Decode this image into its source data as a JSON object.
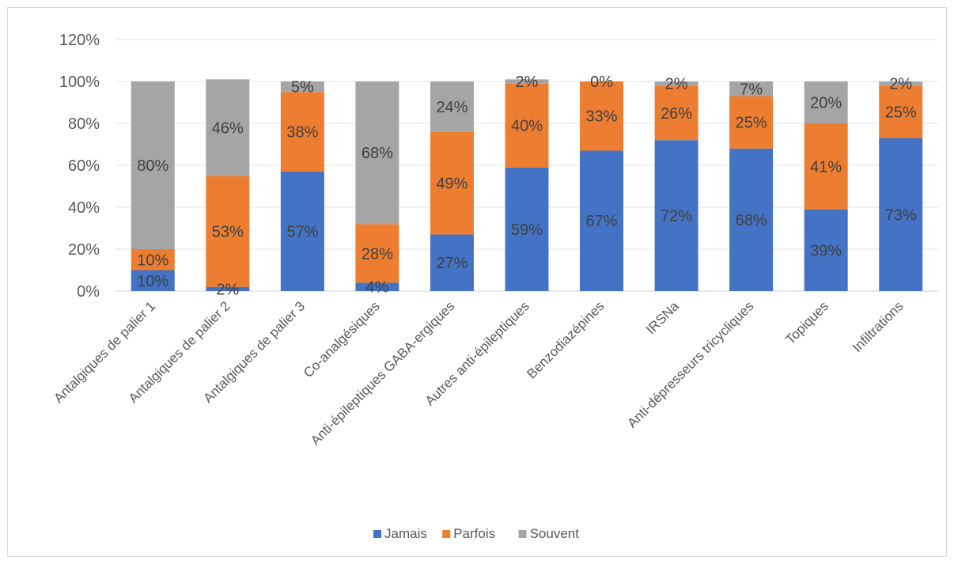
{
  "chart_data": {
    "type": "bar",
    "stacked": true,
    "title": "",
    "xlabel": "",
    "ylabel": "",
    "ylim": [
      0,
      120
    ],
    "yticks": [
      "0%",
      "20%",
      "40%",
      "60%",
      "80%",
      "100%",
      "120%"
    ],
    "grid": true,
    "legend_position": "bottom",
    "categories": [
      "Antalgiques de palier 1",
      "Antalgiques de palier 2",
      "Antalgiques de palier 3",
      "Co-analgésiques",
      "Anti-épileptiques GABA-ergiques",
      "Autres anti-épileptiques",
      "Benzodiazépines",
      "IRSNa",
      "Anti-dépresseurs tricycliques",
      "Topiques",
      "Infiltrations"
    ],
    "series": [
      {
        "name": "Jamais",
        "color": "#4472c4",
        "values": [
          10,
          2,
          57,
          4,
          27,
          59,
          67,
          72,
          68,
          39,
          73
        ],
        "labels": [
          "10%",
          "2%",
          "57%",
          "4%",
          "27%",
          "59%",
          "67%",
          "72%",
          "68%",
          "39%",
          "73%"
        ]
      },
      {
        "name": "Parfois",
        "color": "#ed7d31",
        "values": [
          10,
          53,
          38,
          28,
          49,
          40,
          33,
          26,
          25,
          41,
          25
        ],
        "labels": [
          "10%",
          "53%",
          "38%",
          "28%",
          "49%",
          "40%",
          "33%",
          "26%",
          "25%",
          "41%",
          "25%"
        ]
      },
      {
        "name": "Souvent",
        "color": "#a5a5a5",
        "values": [
          80,
          46,
          5,
          68,
          24,
          2,
          0,
          2,
          7,
          20,
          2
        ],
        "labels": [
          "80%",
          "46%",
          "5%",
          "68%",
          "24%",
          "2%",
          "0%",
          "2%",
          "7%",
          "20%",
          "2%"
        ]
      }
    ]
  }
}
